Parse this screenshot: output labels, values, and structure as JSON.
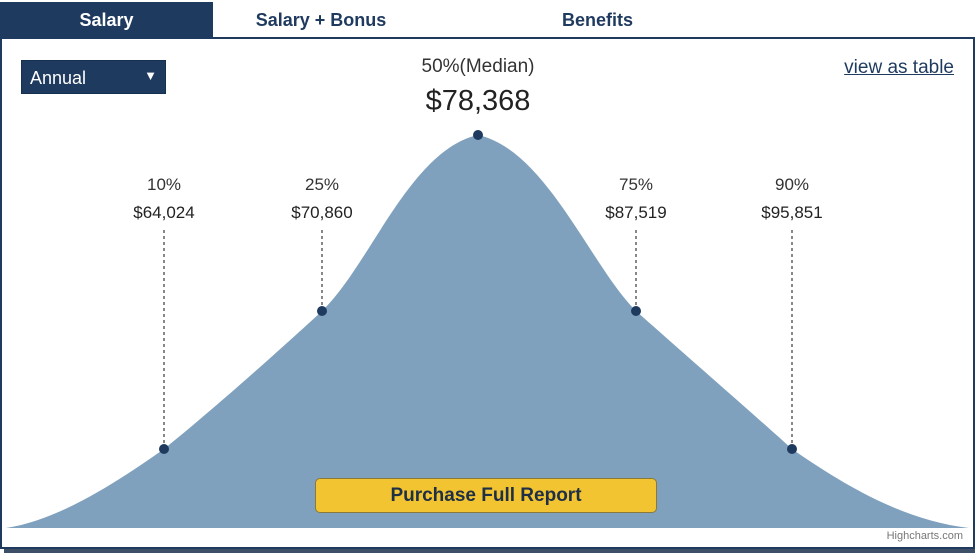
{
  "tabs": [
    {
      "label": "Salary",
      "active": true
    },
    {
      "label": "Salary + Bonus",
      "active": false
    },
    {
      "label": "Benefits",
      "active": false
    }
  ],
  "period_select": {
    "value": "Annual",
    "arrow": "▼"
  },
  "view_table_link": "view as table",
  "purchase_button": "Purchase Full Report",
  "credit": "Highcharts.com",
  "colors": {
    "navy": "#1f3a5f",
    "curve_fill": "#7fa1bd",
    "marker": "#1f3a5f",
    "button": "#f2c431"
  },
  "chart_data": {
    "type": "area",
    "series": [
      {
        "points": [
          {
            "percentile": "10%",
            "value": "$64,024"
          },
          {
            "percentile": "25%",
            "value": "$70,860"
          },
          {
            "percentile": "50%(Median)",
            "value": "$78,368"
          },
          {
            "percentile": "75%",
            "value": "$87,519"
          },
          {
            "percentile": "90%",
            "value": "$95,851"
          }
        ]
      }
    ]
  }
}
